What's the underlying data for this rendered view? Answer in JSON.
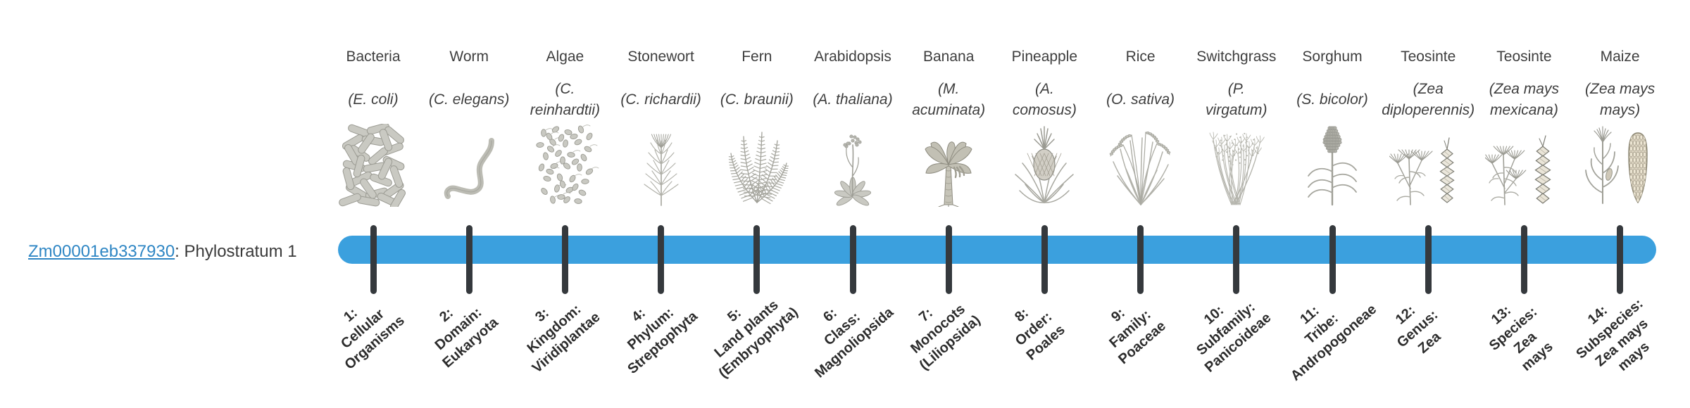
{
  "gene": {
    "id": "Zm00001eb337930",
    "suffix": ": Phylostratum 1"
  },
  "timeline": {
    "bar_color": "#3ba0de",
    "tick_color": "#35393d"
  },
  "organisms": [
    {
      "name": "Bacteria",
      "sci": "(E. coli)",
      "icon": "bacteria-icon",
      "stratum": "1:\nCellular\nOrganisms"
    },
    {
      "name": "Worm",
      "sci": "(C. elegans)",
      "icon": "worm-icon",
      "stratum": "2:\nDomain:\nEukaryota"
    },
    {
      "name": "Algae",
      "sci": "(C.\nreinhardtii)",
      "icon": "algae-icon",
      "stratum": "3:\nKingdom:\nViridiplantae"
    },
    {
      "name": "Stonewort",
      "sci": "(C. richardii)",
      "icon": "stonewort-icon",
      "stratum": "4:\nPhylum:\nStreptophyta"
    },
    {
      "name": "Fern",
      "sci": "(C. braunii)",
      "icon": "fern-icon",
      "stratum": "5:\nLand plants\n(Embryophyta)"
    },
    {
      "name": "Arabidopsis",
      "sci": "(A. thaliana)",
      "icon": "arabidopsis-icon",
      "stratum": "6:\nClass:\nMagnoliopsida"
    },
    {
      "name": "Banana",
      "sci": "(M.\nacuminata)",
      "icon": "banana-icon",
      "stratum": "7:\nMonocots\n(Liliopsida)"
    },
    {
      "name": "Pineapple",
      "sci": "(A.\ncomosus)",
      "icon": "pineapple-icon",
      "stratum": "8:\nOrder:\nPoales"
    },
    {
      "name": "Rice",
      "sci": "(O. sativa)",
      "icon": "rice-icon",
      "stratum": "9:\nFamily:\nPoaceae"
    },
    {
      "name": "Switchgrass",
      "sci": "(P.\nvirgatum)",
      "icon": "switchgrass-icon",
      "stratum": "10:\nSubfamily:\nPanicoideae"
    },
    {
      "name": "Sorghum",
      "sci": "(S. bicolor)",
      "icon": "sorghum-icon",
      "stratum": "11:\nTribe:\nAndropogoneae"
    },
    {
      "name": "Teosinte",
      "sci": "(Zea\ndiploperennis)",
      "icon": "teosinte-diploperennis-icon",
      "stratum": "12:\nGenus:\nZea"
    },
    {
      "name": "Teosinte",
      "sci": "(Zea mays\nmexicana)",
      "icon": "teosinte-mexicana-icon",
      "stratum": "13:\nSpecies:\nZea\nmays"
    },
    {
      "name": "Maize",
      "sci": "(Zea mays\nmays)",
      "icon": "maize-icon",
      "stratum": "14:\nSubspecies:\nZea mays\nmays"
    }
  ]
}
